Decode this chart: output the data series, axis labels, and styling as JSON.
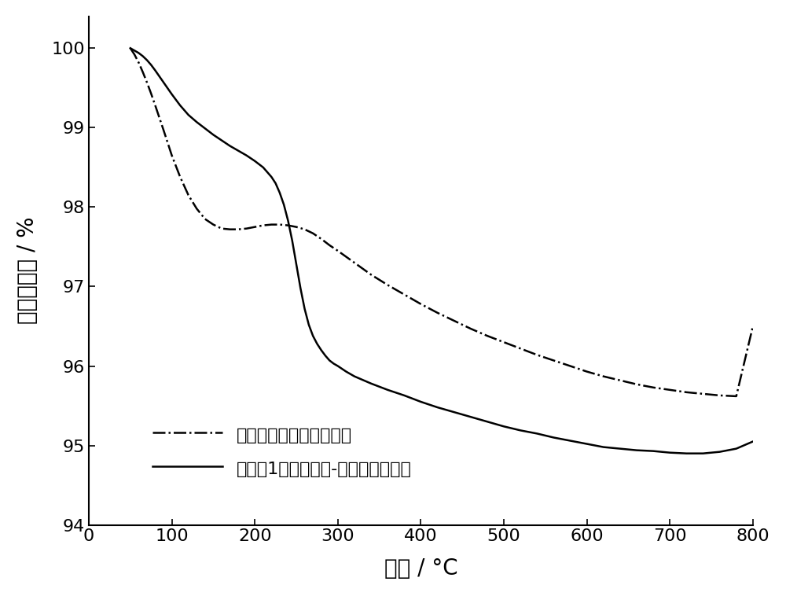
{
  "xlabel": "温度 / °C",
  "ylabel": "重量百分数 / %",
  "xlim": [
    0,
    800
  ],
  "ylim": [
    94,
    100.4
  ],
  "xticks": [
    0,
    100,
    200,
    300,
    400,
    500,
    600,
    700,
    800
  ],
  "yticks": [
    94,
    95,
    96,
    97,
    98,
    99,
    100
  ],
  "legend": [
    "二氧化钛负载的钌催化剂",
    "实施例1所制备有机-无机杂化催化剂"
  ],
  "line1_style": "-.",
  "line2_style": "-",
  "line_color": "#000000",
  "line_width": 1.8,
  "background_color": "#ffffff",
  "line1_x": [
    50,
    55,
    60,
    65,
    70,
    75,
    80,
    90,
    100,
    110,
    120,
    130,
    140,
    150,
    160,
    170,
    180,
    190,
    200,
    210,
    220,
    230,
    240,
    250,
    260,
    270,
    280,
    290,
    300,
    320,
    340,
    360,
    380,
    400,
    420,
    440,
    460,
    480,
    500,
    520,
    540,
    560,
    580,
    600,
    620,
    640,
    660,
    680,
    700,
    720,
    740,
    760,
    780,
    800
  ],
  "line1_y": [
    100.0,
    99.92,
    99.82,
    99.7,
    99.57,
    99.43,
    99.28,
    98.97,
    98.65,
    98.38,
    98.15,
    97.98,
    97.85,
    97.78,
    97.73,
    97.72,
    97.72,
    97.73,
    97.75,
    97.77,
    97.78,
    97.78,
    97.77,
    97.75,
    97.72,
    97.67,
    97.6,
    97.52,
    97.45,
    97.3,
    97.15,
    97.02,
    96.9,
    96.78,
    96.67,
    96.57,
    96.47,
    96.38,
    96.3,
    96.22,
    96.14,
    96.07,
    96.0,
    95.93,
    95.87,
    95.82,
    95.77,
    95.73,
    95.7,
    95.67,
    95.65,
    95.63,
    95.62,
    96.5
  ],
  "line2_x": [
    50,
    55,
    60,
    65,
    70,
    75,
    80,
    90,
    100,
    110,
    120,
    130,
    140,
    150,
    160,
    170,
    180,
    190,
    200,
    210,
    220,
    225,
    230,
    235,
    240,
    245,
    250,
    255,
    260,
    265,
    270,
    275,
    280,
    285,
    290,
    295,
    300,
    310,
    320,
    340,
    360,
    380,
    400,
    420,
    440,
    460,
    480,
    500,
    520,
    540,
    560,
    580,
    600,
    620,
    640,
    660,
    680,
    700,
    720,
    740,
    760,
    780,
    800
  ],
  "line2_y": [
    100.0,
    99.97,
    99.94,
    99.9,
    99.85,
    99.79,
    99.72,
    99.57,
    99.42,
    99.28,
    99.16,
    99.07,
    98.99,
    98.91,
    98.84,
    98.77,
    98.71,
    98.65,
    98.58,
    98.5,
    98.38,
    98.3,
    98.18,
    98.03,
    97.83,
    97.58,
    97.28,
    96.98,
    96.72,
    96.52,
    96.38,
    96.28,
    96.2,
    96.13,
    96.07,
    96.03,
    96.0,
    95.93,
    95.87,
    95.78,
    95.7,
    95.63,
    95.55,
    95.48,
    95.42,
    95.36,
    95.3,
    95.24,
    95.19,
    95.15,
    95.1,
    95.06,
    95.02,
    94.98,
    94.96,
    94.94,
    94.93,
    94.91,
    94.9,
    94.9,
    94.92,
    94.96,
    95.05
  ]
}
